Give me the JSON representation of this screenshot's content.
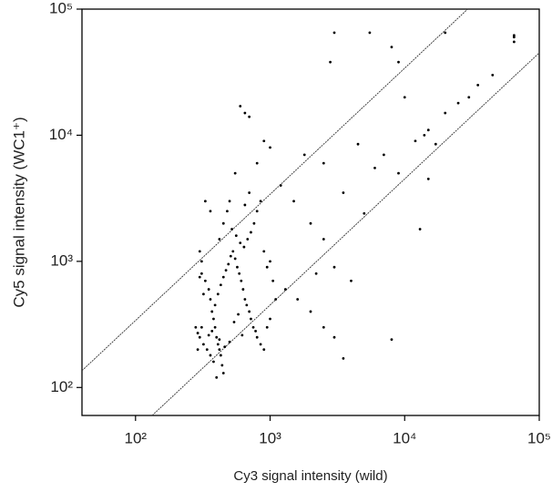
{
  "chart_data": {
    "type": "scatter",
    "x_label": "Cy3 signal intensity (wild)",
    "y_label": "Cy5 signal intensity (WC1⁺)",
    "log_x": true,
    "log_y": true,
    "xlim": [
      40,
      100000
    ],
    "ylim": [
      60,
      100000
    ],
    "xticks": [
      {
        "value": 100,
        "label": "10²"
      },
      {
        "value": 1000,
        "label": "10³"
      },
      {
        "value": 10000,
        "label": "10⁴"
      },
      {
        "value": 100000,
        "label": "10⁵"
      }
    ],
    "yticks": [
      {
        "value": 100,
        "label": "10²"
      },
      {
        "value": 1000,
        "label": "10³"
      },
      {
        "value": 10000,
        "label": "10⁴"
      },
      {
        "value": 100000,
        "label": "10⁵"
      }
    ],
    "color": "#000000",
    "lines": [
      {
        "x": [
          40,
          29400
        ],
        "y": [
          136,
          100000
        ]
      },
      {
        "x": [
          133,
          100000
        ],
        "y": [
          60,
          45000
        ]
      }
    ],
    "x": [
      290,
      300,
      310,
      320,
      300,
      310,
      330,
      350,
      360,
      370,
      380,
      390,
      400,
      410,
      420,
      430,
      440,
      450,
      400,
      380,
      360,
      340,
      350,
      370,
      390,
      410,
      430,
      450,
      470,
      490,
      510,
      530,
      550,
      570,
      590,
      610,
      630,
      650,
      670,
      700,
      720,
      750,
      780,
      800,
      850,
      900,
      950,
      1000,
      420,
      450,
      480,
      500,
      520,
      560,
      600,
      640,
      680,
      720,
      760,
      800,
      850,
      900,
      950,
      1000,
      1050,
      1100,
      600,
      650,
      700,
      900,
      1000,
      800,
      550,
      1200,
      1500,
      2000,
      2500,
      3000,
      1300,
      1600,
      2000,
      2500,
      3500,
      4000,
      3000,
      8000,
      5000,
      6000,
      7000,
      9000,
      10000,
      12000,
      14000,
      15000,
      13000,
      15000,
      17000,
      20000,
      25000,
      30000,
      35000,
      45000,
      65000,
      65000,
      65000,
      3000,
      2800,
      5500,
      8000,
      9000,
      20000,
      2500,
      1800,
      700,
      650,
      330,
      360,
      300,
      310,
      320,
      280,
      290,
      420,
      460,
      500,
      540,
      580,
      620,
      3500,
      4500,
      2200
    ],
    "y": [
      270,
      250,
      300,
      220,
      750,
      800,
      700,
      600,
      500,
      400,
      350,
      300,
      250,
      220,
      200,
      180,
      150,
      130,
      120,
      160,
      180,
      200,
      260,
      280,
      450,
      550,
      650,
      750,
      850,
      950,
      1100,
      1200,
      1050,
      900,
      800,
      700,
      600,
      500,
      450,
      400,
      350,
      300,
      280,
      250,
      220,
      200,
      300,
      350,
      1500,
      2000,
      2500,
      3000,
      1800,
      1600,
      1400,
      1300,
      1500,
      1700,
      2000,
      2500,
      3000,
      1200,
      900,
      1000,
      700,
      500,
      17000,
      15000,
      14000,
      9000,
      8000,
      6000,
      5000,
      4000,
      3000,
      2000,
      1500,
      900,
      600,
      500,
      400,
      300,
      170,
      700,
      250,
      240,
      2400,
      5500,
      7000,
      5000,
      20000,
      9000,
      10000,
      11000,
      1800,
      4500,
      8500,
      15000,
      18000,
      20000,
      25000,
      30000,
      55000,
      60000,
      62000,
      65000,
      38000,
      65000,
      50000,
      38000,
      65000,
      6000,
      7000,
      3500,
      2800,
      3000,
      2500,
      1200,
      1000,
      550,
      300,
      200,
      240,
      210,
      230,
      330,
      380,
      260,
      3500,
      8500,
      800
    ]
  }
}
